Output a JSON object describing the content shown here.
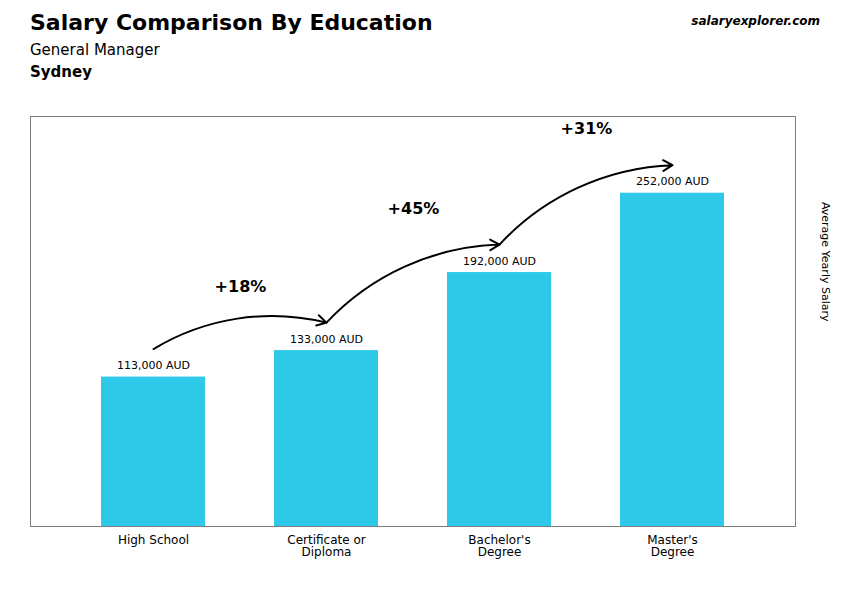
{
  "chart_data": {
    "type": "bar",
    "title": "Salary Comparison By Education",
    "subtitle": "General Manager",
    "city": "Sydney",
    "watermark": "salaryexplorer.com",
    "ylabel": "Average Yearly Salary",
    "categories": [
      "High School",
      "Certificate or\nDiploma",
      "Bachelor's\nDegree",
      "Master's\nDegree"
    ],
    "values": [
      113000,
      133000,
      192000,
      252000
    ],
    "value_labels": [
      "113,000 AUD",
      "133,000 AUD",
      "192,000 AUD",
      "252,000 AUD"
    ],
    "data_labels": true,
    "color": "#2ec8e8",
    "ylim": [
      0,
      310000
    ],
    "tick_labels": "x",
    "annotations": [
      {
        "text": "+18%",
        "from": "High School",
        "to": "Certificate or\nDiploma"
      },
      {
        "text": "+45%",
        "from": "Certificate or\nDiploma",
        "to": "Bachelor's\nDegree"
      },
      {
        "text": "+31%",
        "from": "Bachelor's\nDegree",
        "to": "Master's\nDegree"
      }
    ]
  }
}
